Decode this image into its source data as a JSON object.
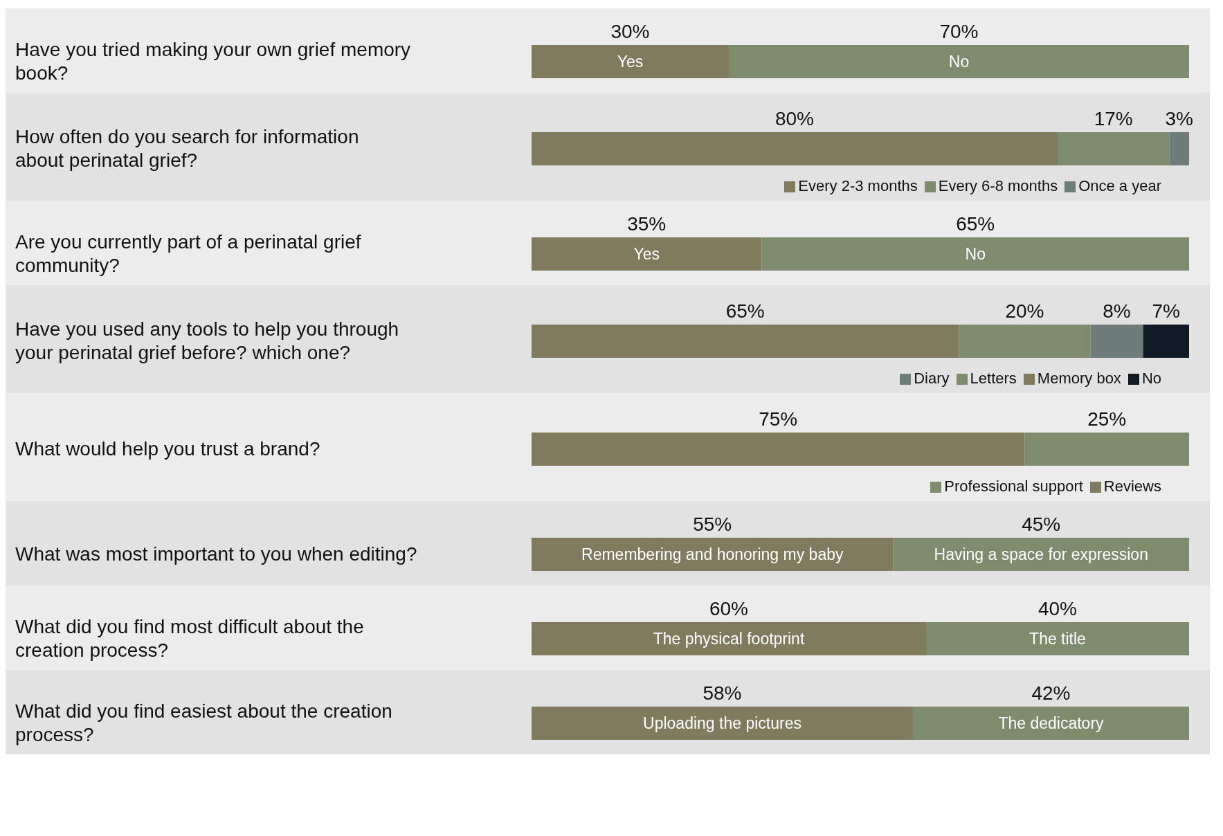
{
  "chart_data": [
    {
      "type": "bar",
      "orientation": "horizontal",
      "stacked": true,
      "categories": [
        "Have you tried making your own grief memory book?"
      ],
      "xlim": [
        0,
        100
      ],
      "tick_labels": "y",
      "series": [
        {
          "name": "Yes",
          "color": "#807a5f",
          "values": [
            30
          ],
          "value_labels": [
            "30%"
          ]
        },
        {
          "name": "No",
          "color": "#7f8b6d",
          "values": [
            70
          ],
          "value_labels": [
            "70%"
          ]
        }
      ]
    },
    {
      "type": "bar",
      "orientation": "horizontal",
      "stacked": true,
      "categories": [
        "How often do you search for information about perinatal grief?"
      ],
      "xlim": [
        0,
        100
      ],
      "tick_labels": "y",
      "legend": "bottom right",
      "series": [
        {
          "name": "Every 2-3 months",
          "color": "#807a5f",
          "values": [
            80
          ],
          "value_labels": [
            "80%"
          ]
        },
        {
          "name": "Every 6-8 months",
          "color": "#7f8b6d",
          "values": [
            17
          ],
          "value_labels": [
            "17%"
          ]
        },
        {
          "name": "Once a year",
          "color": "#6f7d7a",
          "values": [
            3
          ],
          "value_labels": [
            "3%"
          ]
        }
      ]
    },
    {
      "type": "bar",
      "orientation": "horizontal",
      "stacked": true,
      "categories": [
        "Are you currently part of a perinatal grief community?"
      ],
      "xlim": [
        0,
        100
      ],
      "tick_labels": "y",
      "series": [
        {
          "name": "Yes",
          "color": "#807a5f",
          "values": [
            35
          ],
          "value_labels": [
            "35%"
          ]
        },
        {
          "name": "No",
          "color": "#7f8b6d",
          "values": [
            65
          ],
          "value_labels": [
            "65%"
          ]
        }
      ]
    },
    {
      "type": "bar",
      "orientation": "horizontal",
      "stacked": true,
      "categories": [
        "Have you used any tools to help you through your perinatal grief before? which one?"
      ],
      "xlim": [
        0,
        100
      ],
      "tick_labels": "y",
      "legend": "bottom right",
      "series": [
        {
          "name": "Memory box",
          "color": "#807a5f",
          "values": [
            65
          ],
          "value_labels": [
            "65%"
          ]
        },
        {
          "name": "Letters",
          "color": "#7f8b6d",
          "values": [
            20
          ],
          "value_labels": [
            "20%"
          ]
        },
        {
          "name": "Diary",
          "color": "#6f7d7a",
          "values": [
            8
          ],
          "value_labels": [
            "8%"
          ]
        },
        {
          "name": "No",
          "color": "#0f1a24",
          "values": [
            7
          ],
          "value_labels": [
            "7%"
          ]
        }
      ]
    },
    {
      "type": "bar",
      "orientation": "horizontal",
      "stacked": true,
      "categories": [
        "What would help you trust a brand?"
      ],
      "xlim": [
        0,
        100
      ],
      "tick_labels": "y",
      "legend": "bottom right",
      "series": [
        {
          "name": "Reviews",
          "color": "#807a5f",
          "values": [
            75
          ],
          "value_labels": [
            "75%"
          ]
        },
        {
          "name": "Professional support",
          "color": "#7f8b6d",
          "values": [
            25
          ],
          "value_labels": [
            "25%"
          ]
        }
      ]
    },
    {
      "type": "bar",
      "orientation": "horizontal",
      "stacked": true,
      "categories": [
        "What was most important to you when editing?"
      ],
      "xlim": [
        0,
        100
      ],
      "tick_labels": "y",
      "series": [
        {
          "name": "Remembering and honoring my baby",
          "color": "#807a5f",
          "values": [
            55
          ],
          "value_labels": [
            "55%"
          ]
        },
        {
          "name": "Having a space for expression",
          "color": "#7f8b6d",
          "values": [
            45
          ],
          "value_labels": [
            "45%"
          ]
        }
      ]
    },
    {
      "type": "bar",
      "orientation": "horizontal",
      "stacked": true,
      "categories": [
        "What did you find most difficult about the creation process?"
      ],
      "xlim": [
        0,
        100
      ],
      "tick_labels": "y",
      "series": [
        {
          "name": "The physical footprint",
          "color": "#807a5f",
          "values": [
            60
          ],
          "value_labels": [
            "60%"
          ]
        },
        {
          "name": "The title",
          "color": "#7f8b6d",
          "values": [
            40
          ],
          "value_labels": [
            "40%"
          ]
        }
      ]
    },
    {
      "type": "bar",
      "orientation": "horizontal",
      "stacked": true,
      "categories": [
        "What did you find easiest about the creation process?"
      ],
      "xlim": [
        0,
        100
      ],
      "tick_labels": "y",
      "series": [
        {
          "name": "Uploading the pictures",
          "color": "#807a5f",
          "values": [
            58
          ],
          "value_labels": [
            "58%"
          ]
        },
        {
          "name": "The dedicatory",
          "color": "#7f8b6d",
          "values": [
            42
          ],
          "value_labels": [
            "42%"
          ]
        }
      ]
    }
  ]
}
